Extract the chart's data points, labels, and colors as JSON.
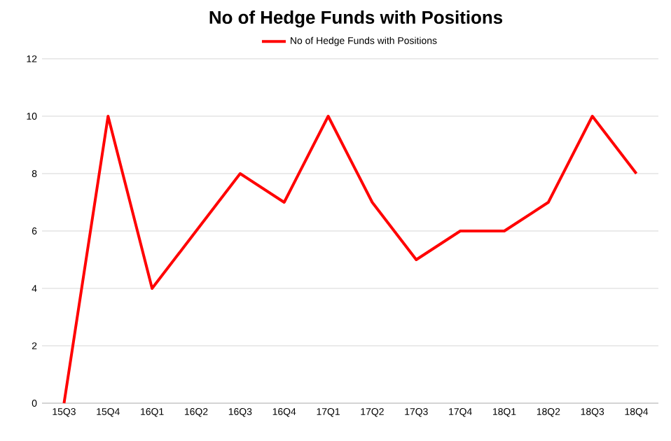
{
  "chart_data": {
    "type": "line",
    "title": "No of Hedge Funds with Positions",
    "categories": [
      "15Q3",
      "15Q4",
      "16Q1",
      "16Q2",
      "16Q3",
      "16Q4",
      "17Q1",
      "17Q2",
      "17Q3",
      "17Q4",
      "18Q1",
      "18Q2",
      "18Q3",
      "18Q4"
    ],
    "series": [
      {
        "name": "No of Hedge Funds with Positions",
        "color": "#ff0000",
        "values": [
          0,
          10,
          4,
          6,
          8,
          7,
          10,
          7,
          5,
          6,
          6,
          7,
          10,
          8
        ]
      }
    ],
    "ylim": [
      0,
      12
    ],
    "yticks": [
      0,
      2,
      4,
      6,
      8,
      10,
      12
    ],
    "grid": "y",
    "legend": "top",
    "marker": "none",
    "line_style": "solid"
  }
}
